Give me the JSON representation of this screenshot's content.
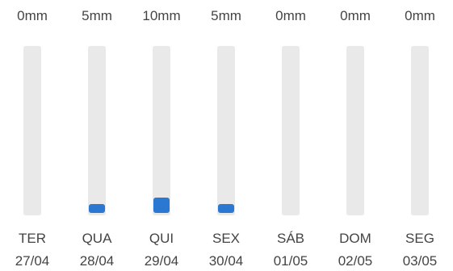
{
  "colors": {
    "fill": "#2a78d1",
    "track": "#e9e9e9",
    "text": "#444444"
  },
  "days": [
    {
      "amount": "0mm",
      "value_mm": 0,
      "weekday": "TER",
      "date": "27/04"
    },
    {
      "amount": "5mm",
      "value_mm": 5,
      "weekday": "QUA",
      "date": "28/04"
    },
    {
      "amount": "10mm",
      "value_mm": 10,
      "weekday": "QUI",
      "date": "29/04"
    },
    {
      "amount": "5mm",
      "value_mm": 5,
      "weekday": "SEX",
      "date": "30/04"
    },
    {
      "amount": "0mm",
      "value_mm": 0,
      "weekday": "SÁB",
      "date": "01/05"
    },
    {
      "amount": "0mm",
      "value_mm": 0,
      "weekday": "DOM",
      "date": "02/05"
    },
    {
      "amount": "0mm",
      "value_mm": 0,
      "weekday": "SEG",
      "date": "03/05"
    }
  ]
}
